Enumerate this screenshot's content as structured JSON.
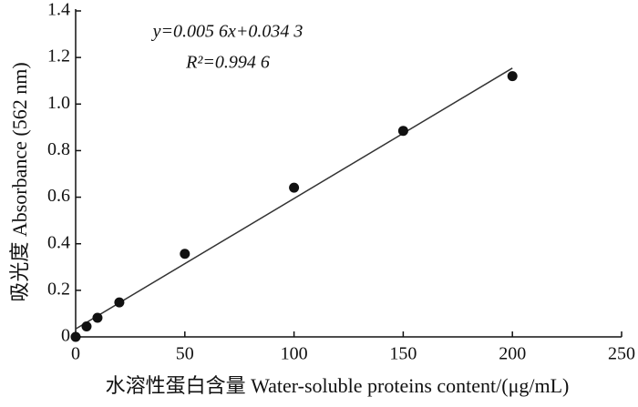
{
  "chart_data": {
    "type": "scatter",
    "x_label": "水溶性蛋白含量  Water-soluble proteins content/(μg/mL)",
    "y_label": "吸光度  Absorbance (562 nm)",
    "annotations": [
      "y=0.005 6x+0.034 3",
      "R²=0.994 6"
    ],
    "x": [
      0,
      5,
      10,
      20,
      50,
      100,
      150,
      200
    ],
    "series": [
      {
        "color": "#111111",
        "values": [
          0,
          0.045,
          0.082,
          0.148,
          0.357,
          0.641,
          0.885,
          1.12
        ]
      }
    ],
    "trendline": {
      "slope": 0.0056,
      "intercept": 0.0343,
      "color": "#333333"
    },
    "xlim": [
      0,
      250
    ],
    "xticks": [
      0,
      50,
      100,
      150,
      200,
      250
    ],
    "ylim": [
      0,
      1.4
    ],
    "yticks": [
      0,
      0.2,
      0.4,
      0.6,
      0.8,
      {
        "value": 1,
        "label": "1.0"
      },
      1.2,
      1.4
    ],
    "grid": false
  }
}
